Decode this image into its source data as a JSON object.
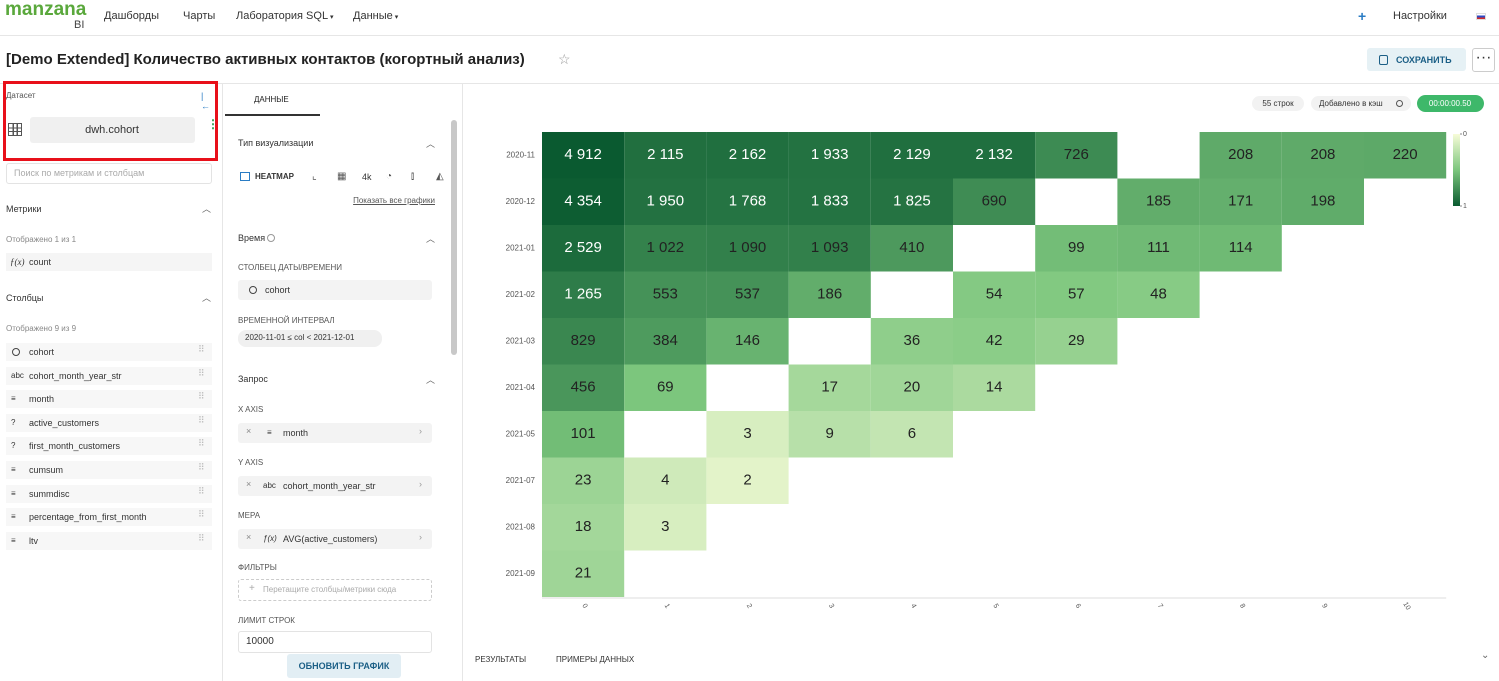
{
  "header": {
    "logo": "manzana",
    "logo_sub": "BI",
    "nav": [
      "Дашборды",
      "Чарты",
      "Лаборатория SQL",
      "Данные"
    ],
    "settings": "Настройки"
  },
  "title": "[Demo Extended] Количество активных контактов (когортный анализ)",
  "save_button": "СОХРАНИТЬ",
  "dataset_panel": {
    "label": "Датасет",
    "dataset": "dwh.cohort",
    "search_placeholder": "Поиск по метрикам и столбцам",
    "metrics_title": "Метрики",
    "metrics_shown": "Отображено 1 из 1",
    "metrics": [
      {
        "icon": "ƒ(x)",
        "name": "count"
      }
    ],
    "columns_title": "Столбцы",
    "columns_shown": "Отображено 9 из 9",
    "columns": [
      {
        "name": "cohort"
      },
      {
        "icon": "abc",
        "name": "cohort_month_year_str"
      },
      {
        "icon": "≡",
        "name": "month"
      },
      {
        "icon": "?",
        "name": "active_customers"
      },
      {
        "icon": "?",
        "name": "first_month_customers"
      },
      {
        "icon": "≡",
        "name": "cumsum"
      },
      {
        "icon": "≡",
        "name": "summdisc"
      },
      {
        "icon": "≡",
        "name": "percentage_from_first_month"
      },
      {
        "icon": "≡",
        "name": "ltv"
      }
    ]
  },
  "query_panel": {
    "tab": "ДАННЫЕ",
    "viz_title": "Тип визуализации",
    "viz_type": "HEATMAP",
    "viz_4k": "4k",
    "show_all": "Показать все графики",
    "time_title": "Время",
    "datetime_label": "СТОЛБЕЦ ДАТЫ/ВРЕМЕНИ",
    "datetime_column": "cohort",
    "interval_label": "ВРЕМЕННОЙ ИНТЕРВАЛ",
    "interval": "2020-11-01 ≤ col < 2021-12-01",
    "query_title": "Запрос",
    "x_axis_label": "X AXIS",
    "x_axis": {
      "icon": "≡",
      "name": "month"
    },
    "y_axis_label": "Y AXIS",
    "y_axis": {
      "icon": "abc",
      "name": "cohort_month_year_str"
    },
    "measure_label": "МЕРА",
    "measure": {
      "icon": "ƒ(x)",
      "name": "AVG(active_customers)"
    },
    "filters_label": "ФИЛЬТРЫ",
    "filters_placeholder": "Перетащите столбцы/метрики сюда",
    "row_limit_label": "ЛИМИТ СТРОК",
    "row_limit": "10000",
    "update_button": "ОБНОВИТЬ ГРАФИК"
  },
  "results": {
    "row_count": "55 строк",
    "cache": "Добавлено в кэш",
    "time": "00:00:00.50",
    "tabs": [
      "РЕЗУЛЬТАТЫ",
      "ПРИМЕРЫ ДАННЫХ"
    ]
  },
  "heatmap": {
    "x_categories": [
      0,
      1,
      2,
      3,
      4,
      5,
      6,
      7,
      8,
      9,
      10
    ],
    "y_categories": [
      "2020-11",
      "2020-12",
      "2021-01",
      "2021-02",
      "2021-03",
      "2021-04",
      "2021-05",
      "2021-07",
      "2021-08",
      "2021-09"
    ],
    "rows": [
      {
        "values": [
          4912,
          2115,
          2162,
          1933,
          2129,
          2132,
          726,
          null,
          208,
          208,
          220
        ],
        "value_labels": [
          "4 912",
          "2 115",
          "2 162",
          "1 933",
          "2 129",
          "2 132",
          "726",
          null,
          "208",
          "208",
          "220"
        ]
      },
      {
        "values": [
          4354,
          1950,
          1768,
          1833,
          1825,
          690,
          null,
          185,
          171,
          198,
          null
        ],
        "value_labels": [
          "4 354",
          "1 950",
          "1 768",
          "1 833",
          "1 825",
          "690",
          null,
          "185",
          "171",
          "198",
          null
        ]
      },
      {
        "values": [
          2529,
          1022,
          1090,
          1093,
          410,
          null,
          99,
          111,
          114,
          null,
          null
        ],
        "value_labels": [
          "2 529",
          "1 022",
          "1 090",
          "1 093",
          "410",
          null,
          "99",
          "111",
          "114",
          null,
          null
        ]
      },
      {
        "values": [
          1265,
          553,
          537,
          186,
          null,
          54,
          57,
          48,
          null,
          null,
          null
        ],
        "value_labels": [
          "1 265",
          "553",
          "537",
          "186",
          null,
          "54",
          "57",
          "48",
          null,
          null,
          null
        ]
      },
      {
        "values": [
          829,
          384,
          146,
          null,
          36,
          42,
          29,
          null,
          null,
          null,
          null
        ],
        "value_labels": [
          "829",
          "384",
          "146",
          null,
          "36",
          "42",
          "29",
          null,
          null,
          null,
          null
        ]
      },
      {
        "values": [
          456,
          69,
          null,
          17,
          20,
          14,
          null,
          null,
          null,
          null,
          null
        ],
        "value_labels": [
          "456",
          "69",
          null,
          "17",
          "20",
          "14",
          null,
          null,
          null,
          null,
          null
        ]
      },
      {
        "values": [
          101,
          null,
          3,
          9,
          6,
          null,
          null,
          null,
          null,
          null,
          null
        ],
        "value_labels": [
          "101",
          null,
          "3",
          "9",
          "6",
          null,
          null,
          null,
          null,
          null,
          null
        ]
      },
      {
        "values": [
          23,
          4,
          2,
          null,
          null,
          null,
          null,
          null,
          null,
          null,
          null
        ],
        "value_labels": [
          "23",
          "4",
          "2",
          null,
          null,
          null,
          null,
          null,
          null,
          null,
          null
        ]
      },
      {
        "values": [
          18,
          3,
          null,
          null,
          null,
          null,
          null,
          null,
          null,
          null,
          null
        ],
        "value_labels": [
          "18",
          "3",
          null,
          null,
          null,
          null,
          null,
          null,
          null,
          null,
          null
        ]
      },
      {
        "values": [
          21,
          null,
          null,
          null,
          null,
          null,
          null,
          null,
          null,
          null,
          null
        ],
        "value_labels": [
          "21",
          null,
          null,
          null,
          null,
          null,
          null,
          null,
          null,
          null,
          null
        ]
      }
    ],
    "colorbar_ticks": [
      0,
      1
    ],
    "colors": [
      "#f7fcd8",
      "#7cc67d",
      "#0a5a30"
    ]
  }
}
